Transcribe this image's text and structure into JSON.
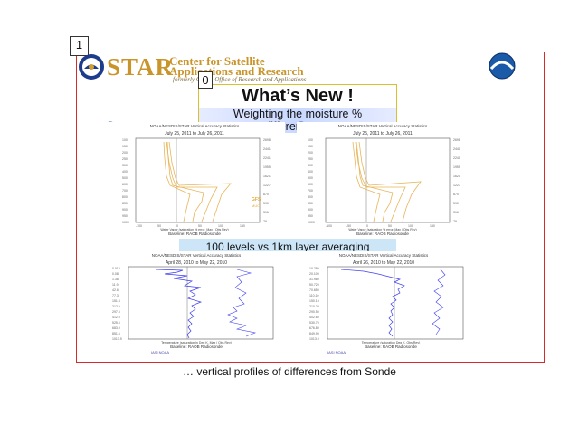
{
  "annotations": {
    "box1": "1",
    "box0": "0"
  },
  "header": {
    "star": "STAR",
    "center_line1": "Center for Satellite",
    "center_line2": "Applications and Research",
    "formerly": "formerly ORA – Office of Research and Applications"
  },
  "slide": {
    "title": "What’s New !",
    "subtitle": "Weighting the moisture % differences…",
    "mid_caption": "100 levels vs 1km layer averaging",
    "bottom_caption": "… vertical profiles of differences from Sonde"
  },
  "charts": [
    {
      "id": "top-left",
      "heading": "NOAA/NESDIS/STAR Vertical Accuracy Statistics",
      "date_range": "July 25, 2011  to  July 26, 2011",
      "xlabel": "Water Vapor (saturation % error, Max / Obs Rev)",
      "baseline": "Baseline:  RAOB Radiosonde",
      "legend": [
        "GFS",
        "MUO"
      ]
    },
    {
      "id": "top-right",
      "heading": "NOAA/NESDIS/STAR Vertical Accuracy Statistics",
      "date_range": "July 25, 2011  to  July 26, 2011",
      "xlabel": "Water Vapor (saturation % error, Max / Obs Rev)",
      "baseline": "Baseline:  RAOB Radiosonde"
    },
    {
      "id": "bottom-left",
      "heading": "NOAA/NESDIS/STAR Vertical Accuracy Statistics",
      "date_range": "April 28, 2010  to  May 22, 2010",
      "xlabel": "Temperature (saturation in Deg K, Max / Obs Rev)",
      "baseline": "Baseline:  RAOB Radiosonde",
      "footer": "IASI NOAA"
    },
    {
      "id": "bottom-right",
      "heading": "NOAA/NESDIS/STAR Vertical Accuracy Statistics",
      "date_range": "April 26, 2010  to  May 22, 2010",
      "xlabel": "Temperature (saturation Deg K, Obs Rev)",
      "baseline": "Baseline:  RAOB Radiosonde",
      "footer": "IASI NOAA"
    }
  ],
  "colors": {
    "border": "#d42b2b",
    "gold": "#c9952b",
    "orange_line": "#e7b55a",
    "blue_line": "#3d3df0"
  },
  "icons": [
    "noaa-seal-icon",
    "noaa-logo-icon",
    "mini-seal-icon"
  ]
}
